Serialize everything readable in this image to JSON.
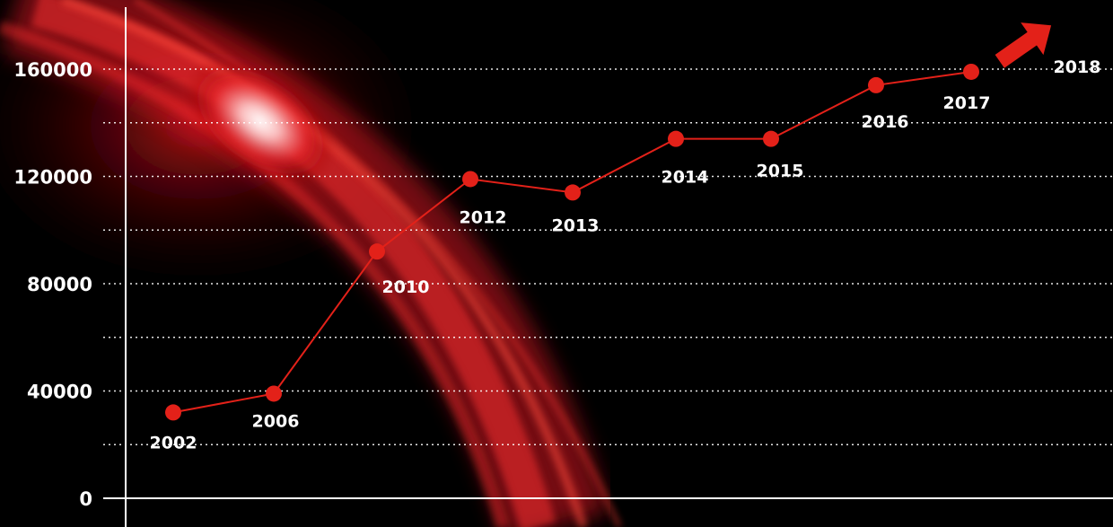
{
  "chart_data": {
    "type": "line",
    "title": "",
    "xlabel": "",
    "ylabel": "",
    "ylim": [
      0,
      160000
    ],
    "yticks": [
      0,
      40000,
      80000,
      120000,
      160000
    ],
    "yticks_labels": [
      "0",
      "40000",
      "80000",
      "120000",
      "160000"
    ],
    "grid": true,
    "categories": [
      "2002",
      "2006",
      "2010",
      "2012",
      "2013",
      "2014",
      "2015",
      "2016",
      "2017"
    ],
    "series": [
      {
        "values": [
          32000,
          39000,
          92000,
          119000,
          114000,
          134000,
          134000,
          154000,
          159000
        ]
      }
    ],
    "trend_label": "2018",
    "colors": {
      "line": "#e32119",
      "point": "#e32119",
      "arrow": "#e32119",
      "text": "#ffffff",
      "background": "#000000"
    }
  }
}
